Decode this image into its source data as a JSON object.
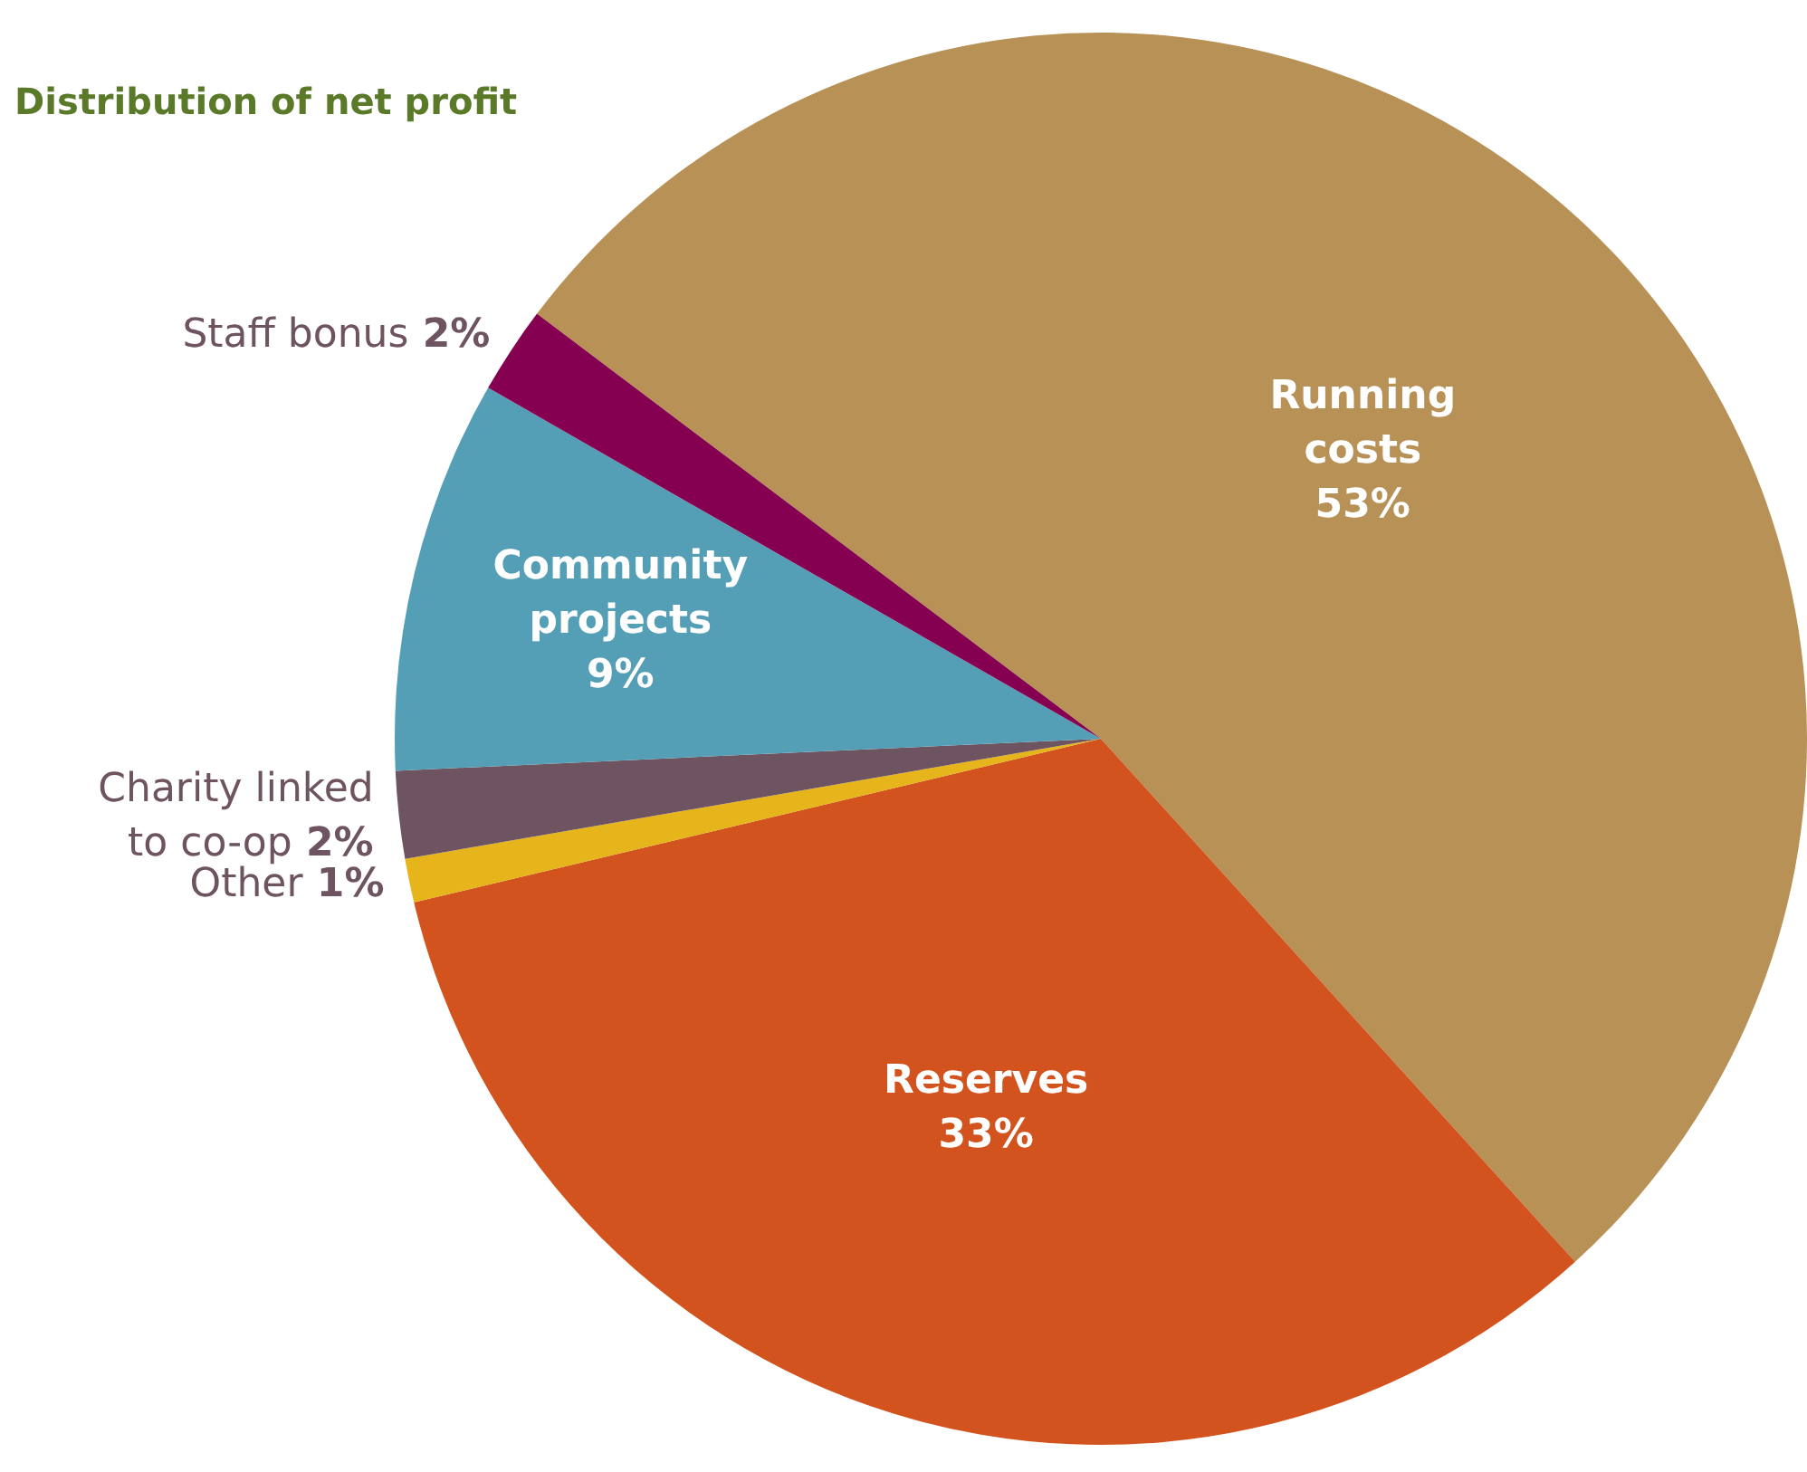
{
  "chart_data": {
    "type": "pie",
    "title": "Distribution of net profit",
    "categories": [
      "Running costs",
      "Reserves",
      "Other",
      "Charity linked to co-op",
      "Community projects",
      "Staff bonus"
    ],
    "values": [
      53,
      33,
      1,
      2,
      9,
      2
    ],
    "value_labels": [
      "53%",
      "33%",
      "1%",
      "2%",
      "9%",
      "2%"
    ],
    "colors": [
      "#b79155",
      "#d3531e",
      "#e6b41b",
      "#6e5461",
      "#559fb6",
      "#850051"
    ],
    "legend": false
  }
}
